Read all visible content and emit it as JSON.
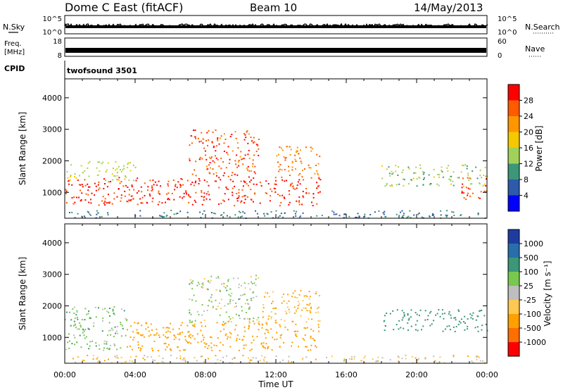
{
  "header": {
    "title": "Dome C East (fitACF)",
    "beam": "Beam 10",
    "date": "14/May/2013",
    "cpid_label": "CPID",
    "cpid_value": "twofsound 3501"
  },
  "nsky_panel": {
    "label": "N.Sky",
    "left_ticks": [
      "10^5",
      "10^0"
    ],
    "right_label": "N.Search",
    "right_ticks": [
      "10^5",
      "10^0"
    ]
  },
  "freq_panel": {
    "label_line1": "Freq.",
    "label_line2": "[MHz]",
    "left_ticks": [
      "18",
      "8"
    ],
    "right_label": "Nave",
    "right_ticks": [
      "60",
      "0"
    ]
  },
  "x_axis": {
    "label": "Time UT",
    "ticks": [
      "00:00",
      "04:00",
      "08:00",
      "12:00",
      "16:00",
      "20:00",
      "00:00"
    ]
  },
  "y_axis": {
    "label": "Slant Range [km]",
    "ticks": [
      "4000",
      "3000",
      "2000",
      "1000"
    ]
  },
  "power_colorbar": {
    "label": "Power [dB]",
    "ticks": [
      "28",
      "24",
      "20",
      "16",
      "12",
      "8",
      "4"
    ],
    "colors": [
      "#ff0000",
      "#ff5a00",
      "#ff9600",
      "#f5c800",
      "#a0d25a",
      "#3c9678",
      "#2d5aaa",
      "#0000ff"
    ]
  },
  "velocity_colorbar": {
    "label": "Velocity [m s⁻¹]",
    "ticks": [
      "1000",
      "500",
      "100",
      "25",
      "-25",
      "-100",
      "-500",
      "-1000"
    ],
    "colors": [
      "#1e3ca0",
      "#286eaa",
      "#3c9678",
      "#78c850",
      "#bebebe",
      "#ffc850",
      "#ffa000",
      "#ff6e00",
      "#ff0000"
    ]
  },
  "chart_data": [
    {
      "type": "heatmap",
      "name": "Power",
      "x": "time UT (hours)",
      "xlim": [
        0,
        24
      ],
      "ylim": [
        180,
        4600
      ],
      "clusters": [
        {
          "t": [
            0,
            14.5
          ],
          "r": [
            600,
            1500
          ],
          "v": 29
        },
        {
          "t": [
            7,
            11
          ],
          "r": [
            1500,
            3000
          ],
          "v": 27
        },
        {
          "t": [
            0,
            4
          ],
          "r": [
            1400,
            2000
          ],
          "v": 16
        },
        {
          "t": [
            12,
            14.5
          ],
          "r": [
            1500,
            2500
          ],
          "v": 24
        },
        {
          "t": [
            18,
            24
          ],
          "r": [
            1200,
            1900
          ],
          "v": 14
        },
        {
          "t": [
            22.5,
            24
          ],
          "r": [
            800,
            1500
          ],
          "v": 28
        },
        {
          "t": [
            0,
            24
          ],
          "r": [
            200,
            450
          ],
          "v": 8
        }
      ]
    },
    {
      "type": "heatmap",
      "name": "Velocity",
      "x": "time UT (hours)",
      "xlim": [
        0,
        24
      ],
      "ylim": [
        180,
        4600
      ],
      "clusters": [
        {
          "t": [
            0,
            3.5
          ],
          "r": [
            600,
            2000
          ],
          "v": 60
        },
        {
          "t": [
            3.5,
            14.5
          ],
          "r": [
            600,
            1500
          ],
          "v": -200
        },
        {
          "t": [
            7,
            11
          ],
          "r": [
            1500,
            3000
          ],
          "v": 30
        },
        {
          "t": [
            11,
            14.5
          ],
          "r": [
            1500,
            2500
          ],
          "v": -100
        },
        {
          "t": [
            18,
            24
          ],
          "r": [
            1200,
            1900
          ],
          "v": 200
        },
        {
          "t": [
            0,
            24
          ],
          "r": [
            200,
            450
          ],
          "v": -50
        }
      ]
    }
  ]
}
